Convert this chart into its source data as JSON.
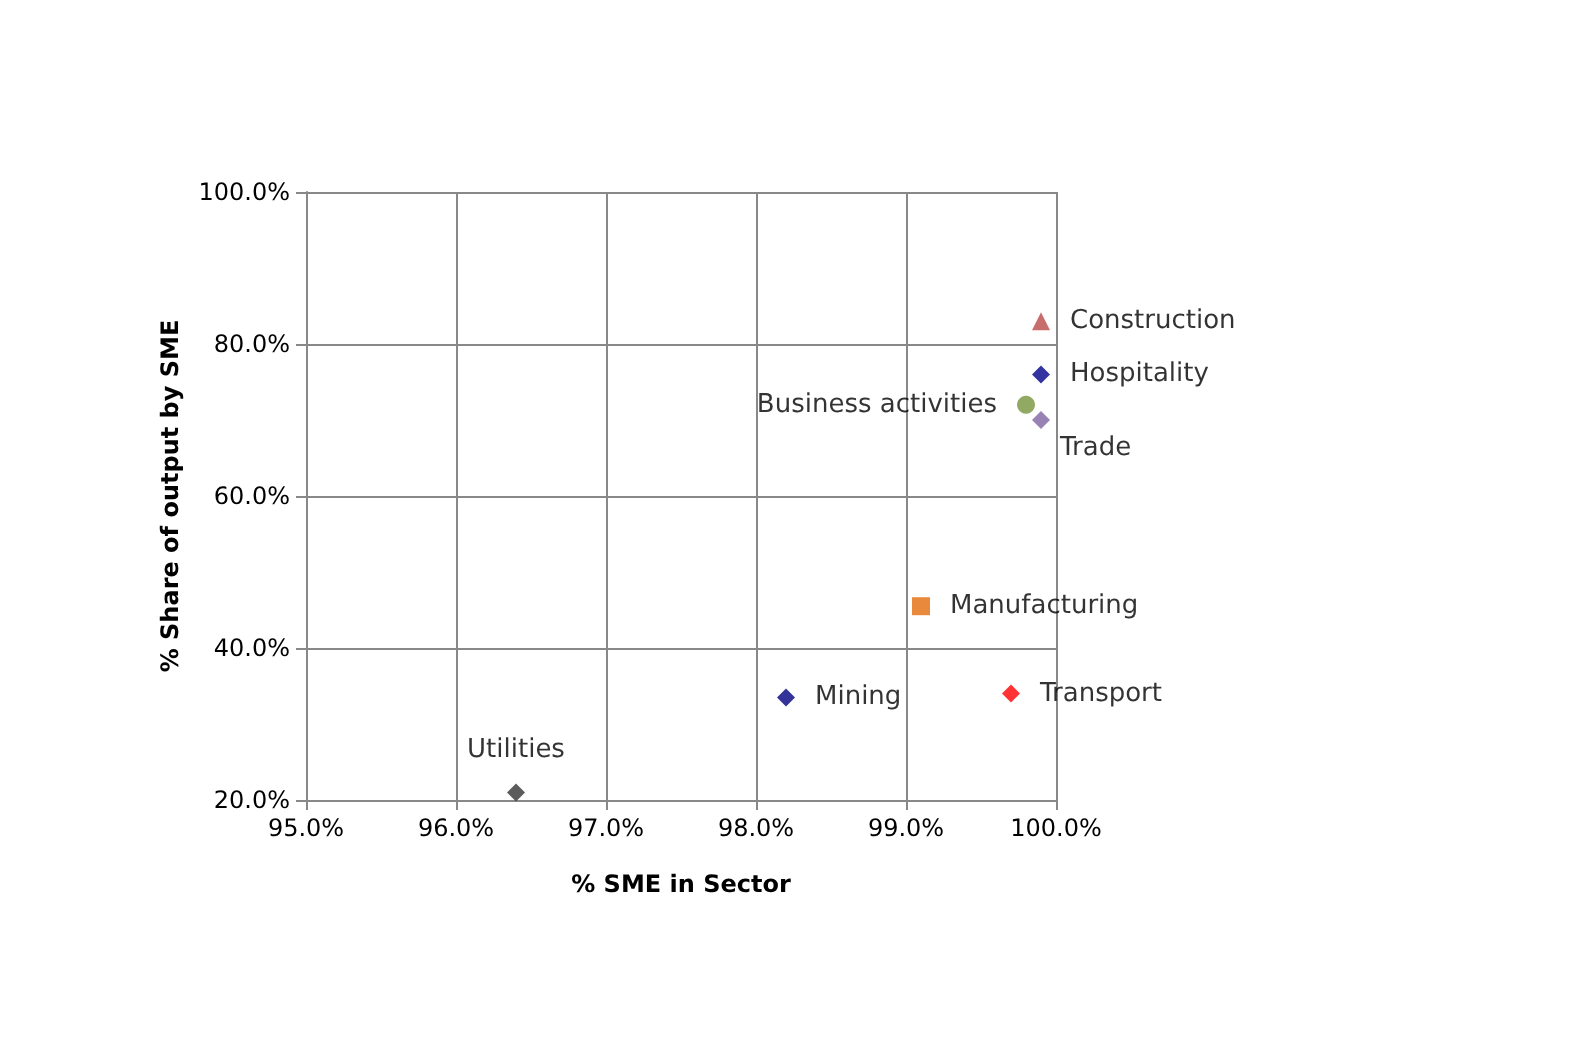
{
  "chart_data": {
    "type": "scatter",
    "xlabel": "% SME in Sector",
    "ylabel": "% Share of output by SME",
    "series": [
      {
        "name": "Construction",
        "color": "#b94a48",
        "marker": "triangle",
        "x": [
          99.9
        ],
        "values": [
          83
        ]
      },
      {
        "name": "Hospitality",
        "color": "#00008b",
        "marker": "diamond",
        "x": [
          99.9
        ],
        "values": [
          76
        ]
      },
      {
        "name": "Business activities",
        "color": "#77933c",
        "marker": "circle",
        "x": [
          99.8
        ],
        "values": [
          72
        ]
      },
      {
        "name": "Trade",
        "color": "#8064a2",
        "marker": "diamond",
        "x": [
          99.9
        ],
        "values": [
          70
        ]
      },
      {
        "name": "Manufacturing",
        "color": "#e46c0a",
        "marker": "square",
        "x": [
          99.1
        ],
        "values": [
          45.5
        ]
      },
      {
        "name": "Mining",
        "color": "#000080",
        "marker": "diamond",
        "x": [
          98.2
        ],
        "values": [
          33.5
        ]
      },
      {
        "name": "Transport",
        "color": "#ff0000",
        "marker": "diamond",
        "x": [
          99.7
        ],
        "values": [
          34
        ]
      },
      {
        "name": "Utilities",
        "color": "#333333",
        "marker": "diamond",
        "x": [
          96.4
        ],
        "values": [
          21
        ]
      }
    ],
    "xlim": [
      95,
      100
    ],
    "ylim": [
      20,
      100
    ],
    "xticks": [
      {
        "value": 95,
        "label": "95.0%"
      },
      {
        "value": 96,
        "label": "96.0%"
      },
      {
        "value": 97,
        "label": "97.0%"
      },
      {
        "value": 98,
        "label": "98.0%"
      },
      {
        "value": 99,
        "label": "99.0%"
      },
      {
        "value": 100,
        "label": "100.0%"
      }
    ],
    "yticks": [
      {
        "value": 20,
        "label": "20.0%"
      },
      {
        "value": 40,
        "label": "40.0%"
      },
      {
        "value": 60,
        "label": "60.0%"
      },
      {
        "value": 80,
        "label": "80.0%"
      },
      {
        "value": 100,
        "label": "100.0%"
      }
    ],
    "grid": true,
    "legend": false
  }
}
